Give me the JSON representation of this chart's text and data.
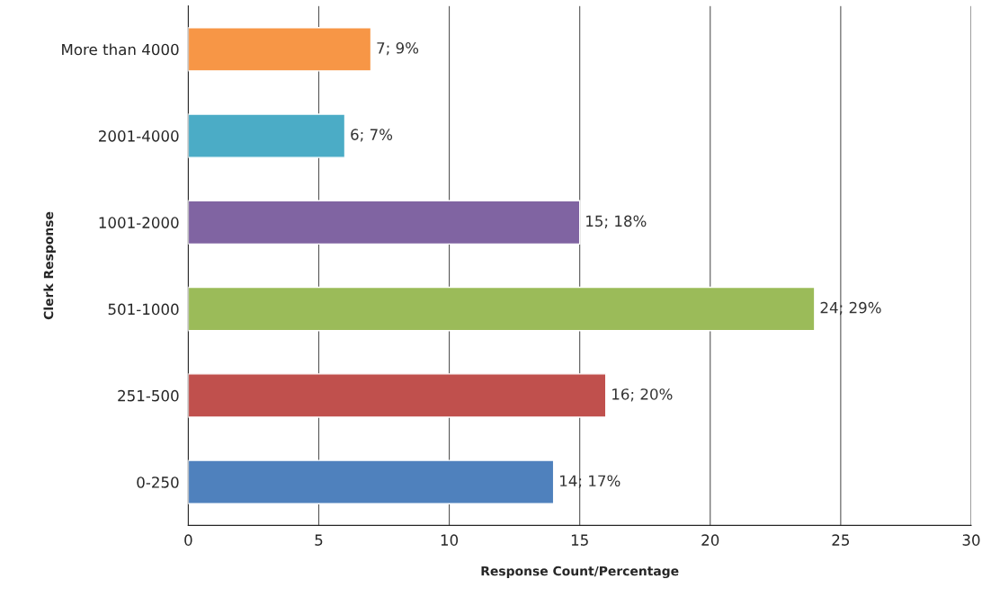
{
  "chart_data": {
    "type": "bar",
    "orientation": "horizontal",
    "xlabel": "Response Count/Percentage",
    "ylabel": "Clerk Response",
    "categories": [
      "More than 4000",
      "2001-4000",
      "1001-2000",
      "501-1000",
      "251-500",
      "0-250"
    ],
    "values": [
      7,
      6,
      15,
      24,
      16,
      14
    ],
    "colors": [
      "#f79646",
      "#4bacc6",
      "#8064a2",
      "#9bbb59",
      "#c0504d",
      "#4f81bd"
    ],
    "value_labels": [
      "7; 9%",
      "6; 7%",
      "15; 18%",
      "24; 29%",
      "16; 20%",
      "14; 17%"
    ],
    "xlim": [
      0,
      30
    ],
    "xticks": [
      0,
      5,
      10,
      15,
      20,
      25,
      30
    ],
    "grid": "x"
  }
}
